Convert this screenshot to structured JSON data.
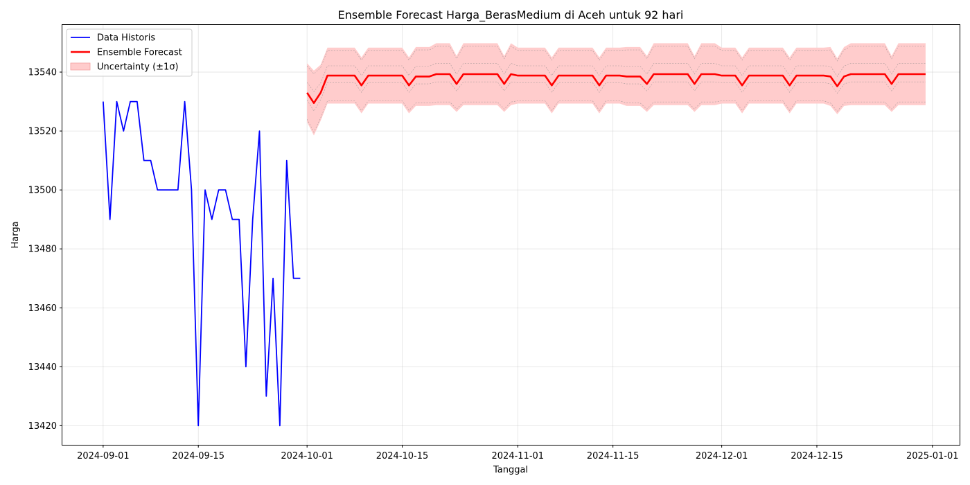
{
  "chart_data": {
    "type": "line",
    "title": "Ensemble Forecast Harga_BerasMedium di Aceh untuk 92 hari",
    "xlabel": "Tanggal",
    "ylabel": "Harga",
    "xlim": [
      "2024-08-26",
      "2025-01-05"
    ],
    "ylim": [
      13413.5,
      13556
    ],
    "x_ticks": [
      "2024-09-01",
      "2024-09-15",
      "2024-10-01",
      "2024-10-15",
      "2024-11-01",
      "2024-11-15",
      "2024-12-01",
      "2024-12-15",
      "2025-01-01"
    ],
    "y_ticks": [
      13420,
      13440,
      13460,
      13480,
      13500,
      13520,
      13540
    ],
    "grid": true,
    "legend_position": "upper-left",
    "legend": [
      {
        "label": "Data Historis",
        "kind": "line",
        "color": "#0000ff"
      },
      {
        "label": "Ensemble Forecast",
        "kind": "line",
        "color": "#ff0000"
      },
      {
        "label": "Uncertainty (±1σ)",
        "kind": "band",
        "color": "#ffcccc"
      }
    ],
    "series": [
      {
        "name": "Data Historis",
        "color": "#0000ff",
        "x": [
          "2024-09-01",
          "2024-09-02",
          "2024-09-03",
          "2024-09-04",
          "2024-09-05",
          "2024-09-06",
          "2024-09-07",
          "2024-09-08",
          "2024-09-09",
          "2024-09-10",
          "2024-09-11",
          "2024-09-12",
          "2024-09-13",
          "2024-09-14",
          "2024-09-15",
          "2024-09-16",
          "2024-09-17",
          "2024-09-18",
          "2024-09-19",
          "2024-09-20",
          "2024-09-21",
          "2024-09-22",
          "2024-09-23",
          "2024-09-24",
          "2024-09-25",
          "2024-09-26",
          "2024-09-27",
          "2024-09-28",
          "2024-09-29",
          "2024-09-30"
        ],
        "y": [
          13530,
          13490,
          13530,
          13520,
          13530,
          13530,
          13510,
          13510,
          13500,
          13500,
          13500,
          13500,
          13530,
          13500,
          13420,
          13500,
          13490,
          13500,
          13500,
          13490,
          13490,
          13440,
          13490,
          13520,
          13430,
          13470,
          13420,
          13510,
          13470,
          13470
        ]
      },
      {
        "name": "Ensemble Forecast",
        "color": "#ff0000",
        "x": [
          "2024-10-01",
          "2024-10-02",
          "2024-10-03",
          "2024-10-04",
          "2024-10-05",
          "2024-10-06",
          "2024-10-07",
          "2024-10-08",
          "2024-10-09",
          "2024-10-10",
          "2024-10-11",
          "2024-10-12",
          "2024-10-13",
          "2024-10-14",
          "2024-10-15",
          "2024-10-16",
          "2024-10-17",
          "2024-10-18",
          "2024-10-19",
          "2024-10-20",
          "2024-10-21",
          "2024-10-22",
          "2024-10-23",
          "2024-10-24",
          "2024-10-25",
          "2024-10-26",
          "2024-10-27",
          "2024-10-28",
          "2024-10-29",
          "2024-10-30",
          "2024-10-31",
          "2024-11-01",
          "2024-11-02",
          "2024-11-03",
          "2024-11-04",
          "2024-11-05",
          "2024-11-06",
          "2024-11-07",
          "2024-11-08",
          "2024-11-09",
          "2024-11-10",
          "2024-11-11",
          "2024-11-12",
          "2024-11-13",
          "2024-11-14",
          "2024-11-15",
          "2024-11-16",
          "2024-11-17",
          "2024-11-18",
          "2024-11-19",
          "2024-11-20",
          "2024-11-21",
          "2024-11-22",
          "2024-11-23",
          "2024-11-24",
          "2024-11-25",
          "2024-11-26",
          "2024-11-27",
          "2024-11-28",
          "2024-11-29",
          "2024-11-30",
          "2024-12-01",
          "2024-12-02",
          "2024-12-03",
          "2024-12-04",
          "2024-12-05",
          "2024-12-06",
          "2024-12-07",
          "2024-12-08",
          "2024-12-09",
          "2024-12-10",
          "2024-12-11",
          "2024-12-12",
          "2024-12-13",
          "2024-12-14",
          "2024-12-15",
          "2024-12-16",
          "2024-12-17",
          "2024-12-18",
          "2024-12-19",
          "2024-12-20",
          "2024-12-21",
          "2024-12-22",
          "2024-12-23",
          "2024-12-24",
          "2024-12-25",
          "2024-12-26",
          "2024-12-27",
          "2024-12-28",
          "2024-12-29",
          "2024-12-30",
          "2024-12-31"
        ],
        "y": [
          13533,
          13529.5,
          13533,
          13538.8,
          13538.8,
          13538.8,
          13538.8,
          13538.8,
          13535.5,
          13538.8,
          13538.8,
          13538.8,
          13538.8,
          13538.8,
          13538.8,
          13535.5,
          13538.5,
          13538.5,
          13538.5,
          13539.3,
          13539.3,
          13539.3,
          13536,
          13539.3,
          13539.3,
          13539.3,
          13539.3,
          13539.3,
          13539.3,
          13536,
          13539.3,
          13538.8,
          13538.8,
          13538.8,
          13538.8,
          13538.8,
          13535.5,
          13538.8,
          13538.8,
          13538.8,
          13538.8,
          13538.8,
          13538.8,
          13535.5,
          13538.8,
          13538.8,
          13538.8,
          13538.5,
          13538.5,
          13538.5,
          13536,
          13539.3,
          13539.3,
          13539.3,
          13539.3,
          13539.3,
          13539.3,
          13536,
          13539.3,
          13539.3,
          13539.3,
          13538.8,
          13538.8,
          13538.8,
          13535.5,
          13538.8,
          13538.8,
          13538.8,
          13538.8,
          13538.8,
          13538.8,
          13535.5,
          13538.8,
          13538.8,
          13538.8,
          13538.8,
          13538.8,
          13538.5,
          13535.2,
          13538.5,
          13539.3,
          13539.3,
          13539.3,
          13539.3,
          13539.3,
          13539.3,
          13536,
          13539.3,
          13539.3,
          13539.3,
          13539.3,
          13539.3
        ]
      }
    ],
    "uncertainty_band": {
      "name": "Uncertainty (±1σ)",
      "color": "#ffcccc",
      "sigma": [
        10,
        11,
        9.5,
        9.5,
        9.5,
        9.5,
        9.5,
        9.5,
        9.5,
        9.5,
        9.5,
        9.5,
        9.5,
        9.5,
        9.5,
        9.5,
        10,
        10,
        10,
        10.5,
        10.5,
        10.5,
        9.5,
        10.5,
        10.5,
        10.5,
        10.5,
        10.5,
        10.5,
        9.5,
        10.5,
        9.5,
        9.5,
        9.5,
        9.5,
        9.5,
        9.5,
        9.5,
        9.5,
        9.5,
        9.5,
        9.5,
        9.5,
        9.5,
        9.5,
        9.5,
        9.5,
        10,
        10,
        10,
        9.5,
        10.5,
        10.5,
        10.5,
        10.5,
        10.5,
        10.5,
        9.5,
        10.5,
        10.5,
        10.5,
        9.5,
        9.5,
        9.5,
        9.5,
        9.5,
        9.5,
        9.5,
        9.5,
        9.5,
        9.5,
        9.5,
        9.5,
        9.5,
        9.5,
        9.5,
        9.5,
        10,
        9.5,
        10,
        10.5,
        10.5,
        10.5,
        10.5,
        10.5,
        10.5,
        9.5,
        10.5,
        10.5,
        10.5,
        10.5,
        10.5
      ]
    }
  }
}
